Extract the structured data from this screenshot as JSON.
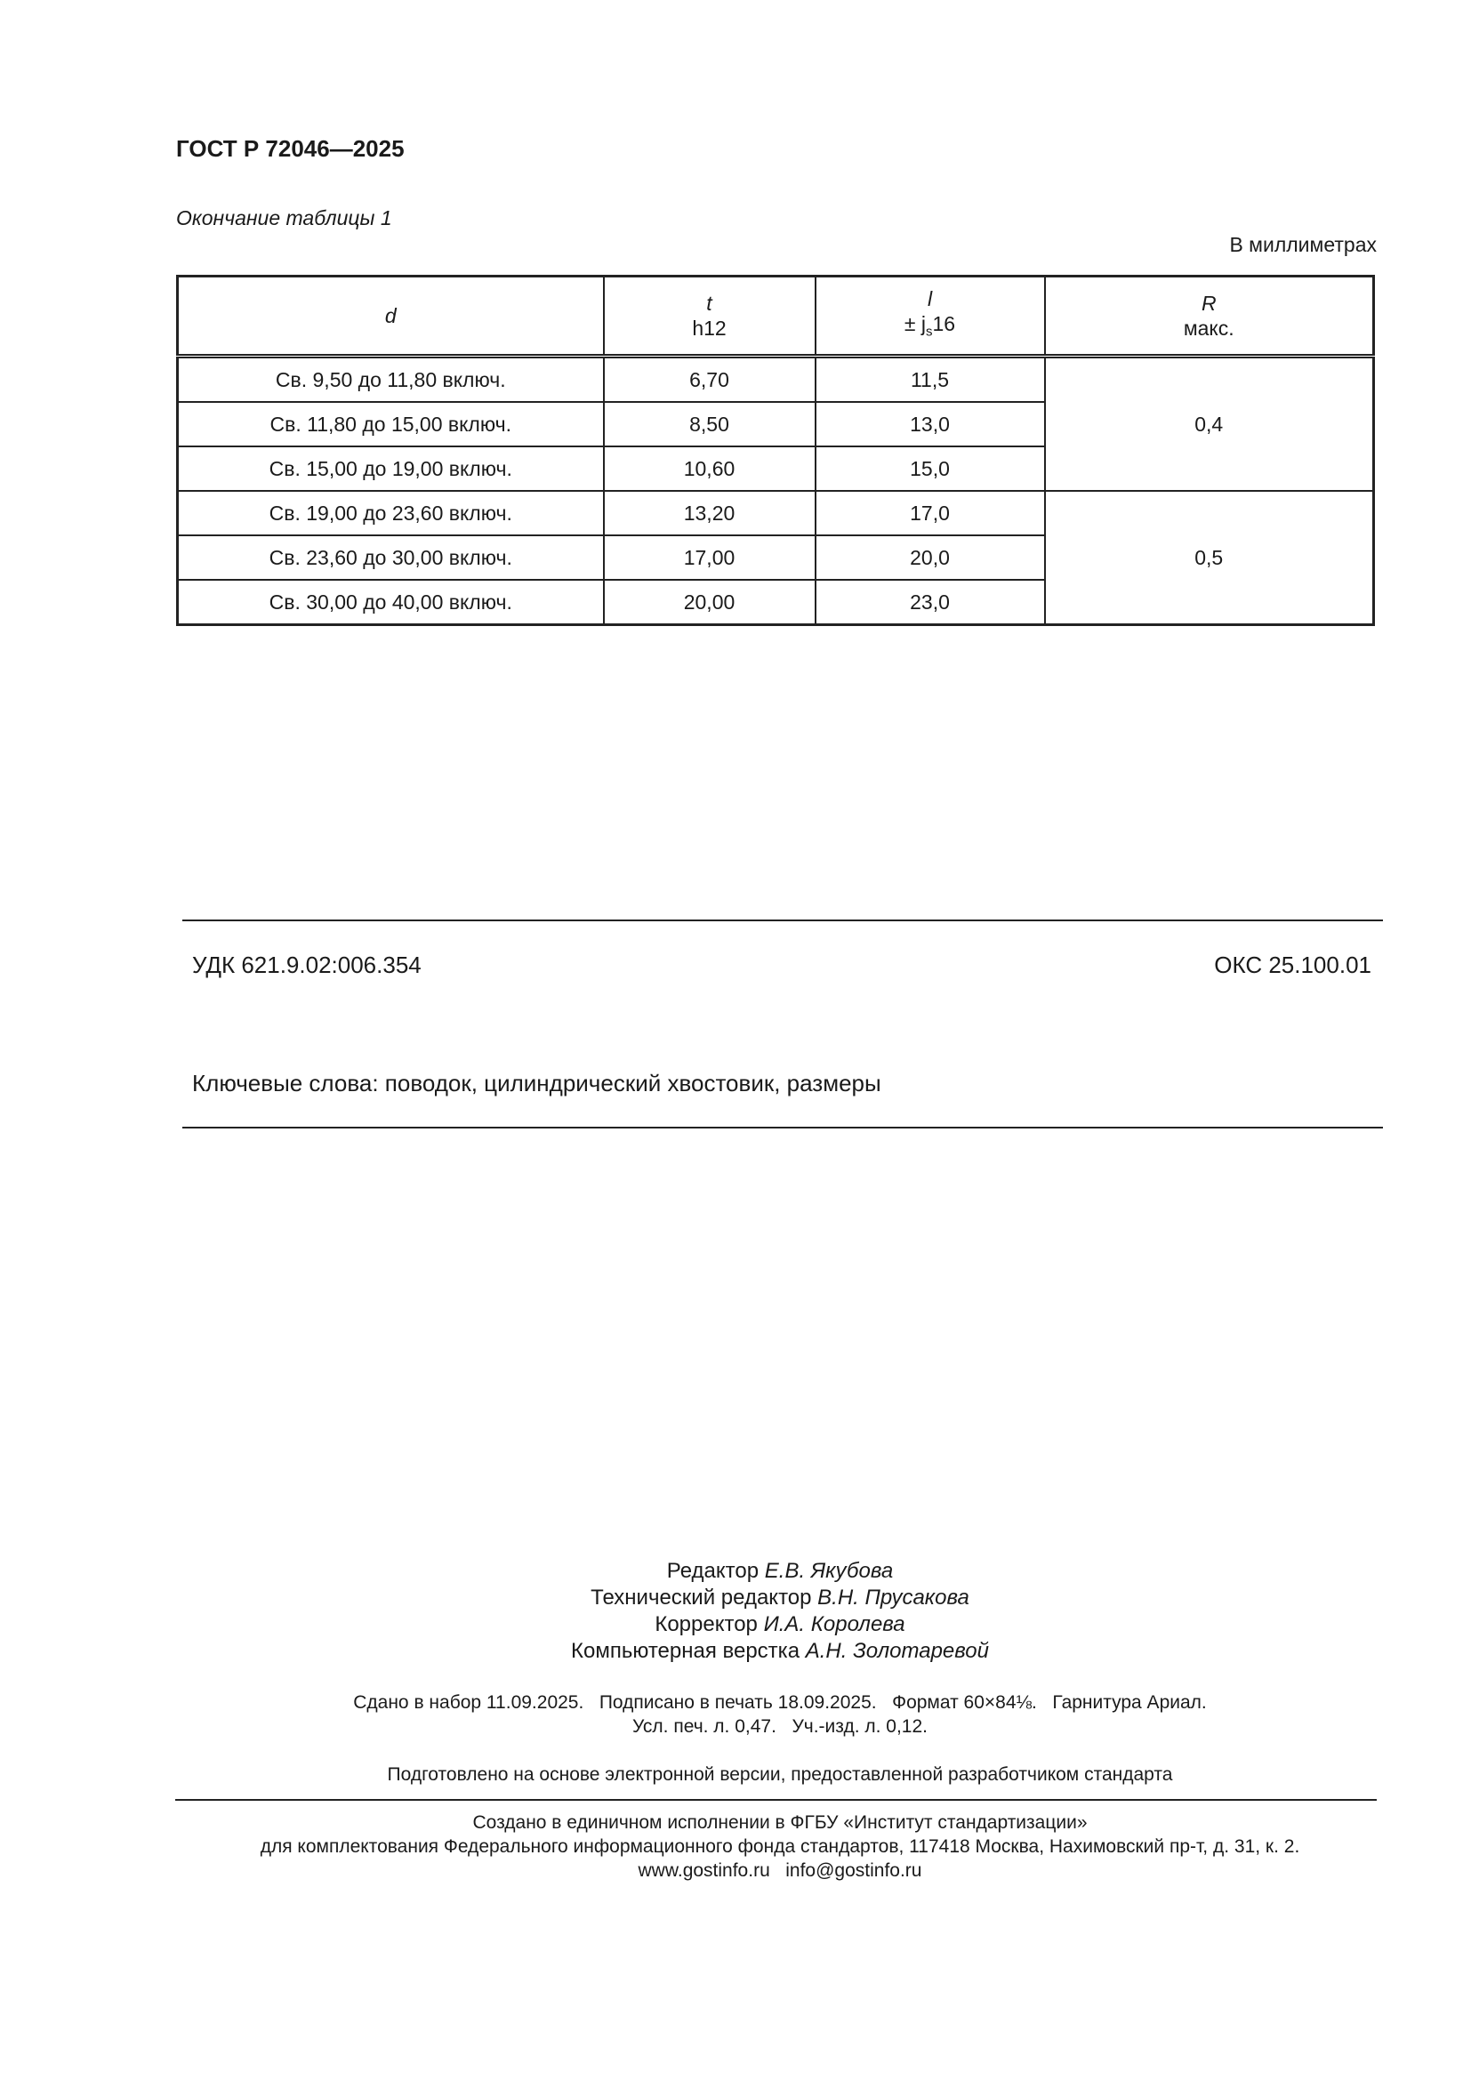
{
  "header": {
    "doc_id": "ГОСТ Р 72046—2025"
  },
  "table": {
    "caption": "Окончание таблицы 1",
    "units": "В миллиметрах",
    "columns": [
      {
        "symbol": "d",
        "sub": ""
      },
      {
        "symbol": "t",
        "sub": "h12"
      },
      {
        "symbol": "l",
        "sub_prefix": "± j",
        "sub_index": "s",
        "sub_suffix": "16"
      },
      {
        "symbol": "R",
        "sub": "макс."
      }
    ],
    "rows": [
      {
        "d": "Св. 9,50 до 11,80 включ.",
        "t": "6,70",
        "l": "11,5"
      },
      {
        "d": "Св. 11,80 до 15,00 включ.",
        "t": "8,50",
        "l": "13,0"
      },
      {
        "d": "Св. 15,00 до 19,00 включ.",
        "t": "10,60",
        "l": "15,0"
      },
      {
        "d": "Св. 19,00 до 23,60 включ.",
        "t": "13,20",
        "l": "17,0"
      },
      {
        "d": "Св. 23,60 до 30,00 включ.",
        "t": "17,00",
        "l": "20,0"
      },
      {
        "d": "Св. 30,00 до 40,00 включ.",
        "t": "20,00",
        "l": "23,0"
      }
    ],
    "r_groups": [
      "0,4",
      "0,5"
    ]
  },
  "classification": {
    "udk": "УДК 621.9.02:006.354",
    "oks": "ОКС 25.100.01"
  },
  "keywords": "Ключевые слова: поводок, цилиндрический хвостовик, размеры",
  "credits": [
    {
      "role": "Редактор",
      "name": "Е.В. Якубова"
    },
    {
      "role": "Технический редактор",
      "name": "В.Н. Прусакова"
    },
    {
      "role": "Корректор",
      "name": "И.А. Королева"
    },
    {
      "role": "Компьютерная верстка",
      "name": "А.Н. Золотаревой"
    }
  ],
  "imprint": {
    "line1": "Сдано в набор 11.09.2025.   Подписано в печать 18.09.2025.   Формат 60×84⅛.   Гарнитура Ариал.",
    "line2": "Усл. печ. л. 0,47.   Уч.-изд. л. 0,12.",
    "prepared": "Подготовлено на основе электронной версии, предоставленной разработчиком стандарта"
  },
  "footer": {
    "line1": "Создано в единичном исполнении в ФГБУ «Институт стандартизации»",
    "line2": "для комплектования Федерального информационного фонда стандартов, 117418 Москва, Нахимовский пр-т, д. 31, к. 2.",
    "line3": "www.gostinfo.ru   info@gostinfo.ru"
  }
}
